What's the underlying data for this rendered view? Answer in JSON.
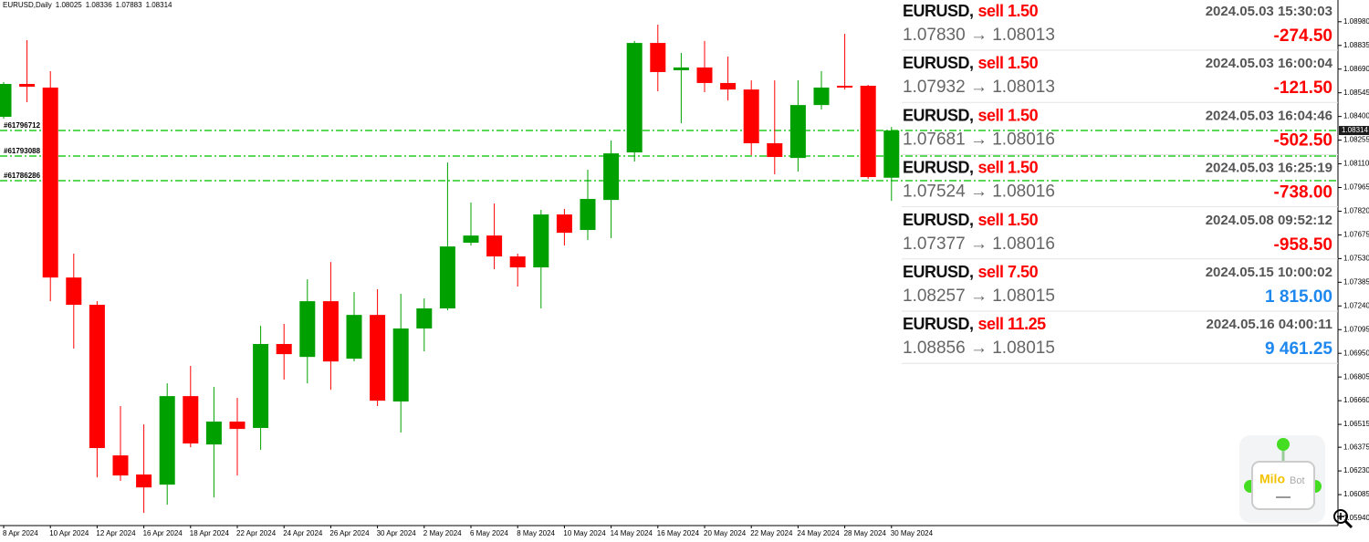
{
  "chart_data": {
    "type": "candlestick",
    "title": "EURUSD,Daily",
    "categories": [
      "8 Apr 2024",
      null,
      "10 Apr 2024",
      null,
      "12 Apr 2024",
      null,
      "16 Apr 2024",
      null,
      "18 Apr 2024",
      null,
      "22 Apr 2024",
      null,
      "24 Apr 2024",
      null,
      "26 Apr 2024",
      null,
      "30 Apr 2024",
      null,
      "2 May 2024",
      null,
      "6 May 2024",
      null,
      "8 May 2024",
      null,
      "10 May 2024",
      null,
      "14 May 2024",
      null,
      "16 May 2024",
      null,
      "20 May 2024",
      null,
      "22 May 2024",
      null,
      "24 May 2024",
      null,
      "28 May 2024",
      null,
      "30 May 2024"
    ],
    "open": [
      1.08398,
      1.08599,
      1.08577,
      1.07414,
      1.07247,
      1.06325,
      1.06208,
      1.06146,
      1.06688,
      1.06392,
      1.06532,
      1.06493,
      1.07007,
      1.06928,
      1.07269,
      1.06917,
      1.07185,
      1.06655,
      1.07102,
      1.07225,
      1.07627,
      1.07671,
      1.07543,
      1.07476,
      1.078,
      1.07705,
      1.07889,
      1.0818,
      1.0885,
      1.08683,
      1.087,
      1.08605,
      1.08565,
      1.08236,
      1.08146,
      1.0847,
      1.08588,
      1.08588,
      1.08025
    ],
    "high": [
      1.0861,
      1.08867,
      1.08677,
      1.0756,
      1.07269,
      1.06627,
      1.06515,
      1.06766,
      1.06873,
      1.06744,
      1.06677,
      1.07118,
      1.0713,
      1.07403,
      1.07509,
      1.07325,
      1.07342,
      1.07314,
      1.07286,
      1.08118,
      1.07873,
      1.07867,
      1.0756,
      1.07828,
      1.07834,
      1.08074,
      1.08253,
      1.08862,
      1.08962,
      1.08789,
      1.08862,
      1.08767,
      1.08621,
      1.08621,
      1.08621,
      1.08677,
      1.08906,
      1.08593,
      1.08336
    ],
    "low": [
      1.08387,
      1.08487,
      1.07269,
      1.06979,
      1.06191,
      1.06169,
      1.05973,
      1.06023,
      1.06375,
      1.06068,
      1.06202,
      1.06359,
      1.06789,
      1.06766,
      1.06727,
      1.069,
      1.06627,
      1.06465,
      1.06962,
      1.07213,
      1.0761,
      1.07465,
      1.07359,
      1.07225,
      1.0761,
      1.07644,
      1.07655,
      1.08124,
      1.08554,
      1.08359,
      1.08549,
      1.08498,
      1.08163,
      1.08046,
      1.08063,
      1.08443,
      1.08565,
      1.08018,
      1.07883
    ],
    "close": [
      1.08599,
      1.08582,
      1.07414,
      1.07247,
      1.0637,
      1.06202,
      1.06129,
      1.06688,
      1.06398,
      1.06532,
      1.06487,
      1.07007,
      1.06945,
      1.07269,
      1.069,
      1.07185,
      1.0666,
      1.07102,
      1.07225,
      1.07604,
      1.07671,
      1.07543,
      1.07476,
      1.078,
      1.07688,
      1.07895,
      1.08174,
      1.0885,
      1.08672,
      1.087,
      1.08605,
      1.08565,
      1.08236,
      1.08152,
      1.0847,
      1.08577,
      1.08577,
      1.08029,
      1.08314
    ],
    "up_color": "#00a000",
    "down_color": "#ff0000",
    "ylim": [
      1.05901,
      1.09113
    ],
    "yticks": [
      {
        "value": 1.0898,
        "label": "1.08980"
      },
      {
        "value": 1.08835,
        "label": "1.08835"
      },
      {
        "value": 1.0869,
        "label": "1.08690"
      },
      {
        "value": 1.08545,
        "label": "1.08545"
      },
      {
        "value": 1.084,
        "label": "1.08400"
      },
      {
        "value": 1.08255,
        "label": "1.08255"
      },
      {
        "value": 1.0811,
        "label": "1.08110"
      },
      {
        "value": 1.07965,
        "label": "1.07965"
      },
      {
        "value": 1.0782,
        "label": "1.07820"
      },
      {
        "value": 1.07675,
        "label": "1.07675"
      },
      {
        "value": 1.0753,
        "label": "1.07530"
      },
      {
        "value": 1.07385,
        "label": "1.07385"
      },
      {
        "value": 1.0724,
        "label": "1.07240"
      },
      {
        "value": 1.07095,
        "label": "1.07095"
      },
      {
        "value": 1.0695,
        "label": "1.06950"
      },
      {
        "value": 1.06805,
        "label": "1.06805"
      },
      {
        "value": 1.0666,
        "label": "1.06660"
      },
      {
        "value": 1.06515,
        "label": "1.06515"
      },
      {
        "value": 1.06375,
        "label": "1.06375"
      },
      {
        "value": 1.0623,
        "label": "1.06230"
      },
      {
        "value": 1.06085,
        "label": "1.06085"
      },
      {
        "value": 1.0594,
        "label": "1.05940"
      }
    ],
    "grid": false,
    "levels": [
      {
        "label": "#61796712",
        "value": 1.08314,
        "color": "#22cc22"
      },
      {
        "label": "#61793088",
        "value": 1.08158,
        "color": "#22cc22"
      },
      {
        "label": "#61786286",
        "value": 1.08007,
        "color": "#22cc22"
      }
    ]
  },
  "trades": [
    {
      "symbol": "EURUSD,",
      "side": "sell 1.50",
      "time": "2024.05.03 15:30:03",
      "prices": "1.07830 → 1.08013",
      "profit": "-274.50",
      "profit_color": "#ff0000"
    },
    {
      "symbol": "EURUSD,",
      "side": "sell 1.50",
      "time": "2024.05.03 16:00:04",
      "prices": "1.07932 → 1.08013",
      "profit": "-121.50",
      "profit_color": "#ff0000"
    },
    {
      "symbol": "EURUSD,",
      "side": "sell 1.50",
      "time": "2024.05.03 16:04:46",
      "prices": "1.07681 → 1.08016",
      "profit": "-502.50",
      "profit_color": "#ff0000"
    },
    {
      "symbol": "EURUSD,",
      "side": "sell 1.50",
      "time": "2024.05.03 16:25:19",
      "prices": "1.07524 → 1.08016",
      "profit": "-738.00",
      "profit_color": "#ff0000"
    },
    {
      "symbol": "EURUSD,",
      "side": "sell 1.50",
      "time": "2024.05.08 09:52:12",
      "prices": "1.07377 → 1.08016",
      "profit": "-958.50",
      "profit_color": "#ff0000"
    },
    {
      "symbol": "EURUSD,",
      "side": "sell 7.50",
      "time": "2024.05.15 10:00:02",
      "prices": "1.08257 → 1.08015",
      "profit": "1 815.00",
      "profit_color": "#1e88ee"
    },
    {
      "symbol": "EURUSD,",
      "side": "sell 11.25",
      "time": "2024.05.16 04:00:11",
      "prices": "1.08856 → 1.08015",
      "profit": "9 461.25",
      "profit_color": "#1e88ee"
    }
  ],
  "logo": {
    "part1": "Milo",
    "part2": "Bot"
  }
}
